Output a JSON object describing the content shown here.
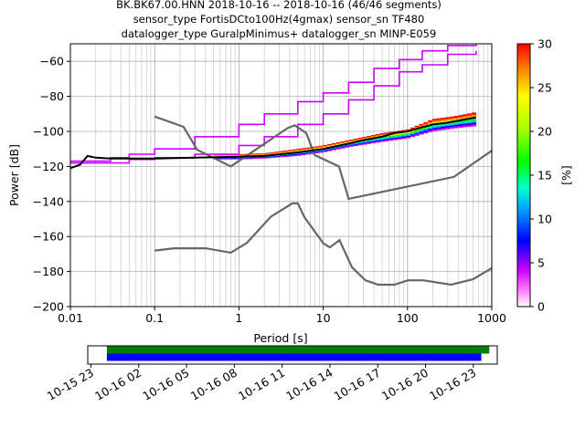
{
  "titles": [
    "BK.BK67.00.HNN   2018-10-16 -- 2018-10-16  (46/46 segments)",
    "sensor_type FortisDCto100Hz(4gmax) sensor_sn TF480",
    "datalogger_type GuralpMinimus+ datalogger_sn MINP-E059"
  ],
  "chart_data": [
    {
      "type": "heatmap",
      "xlabel": "Period [s]",
      "ylabel": "Power [dB]",
      "xscale": "log",
      "xlim": [
        0.01,
        1000
      ],
      "ylim": [
        -200,
        -50
      ],
      "x_ticks": [
        0.01,
        0.1,
        1,
        10,
        100,
        1000
      ],
      "x_tick_labels": [
        "0.01",
        "0.1",
        "1",
        "10",
        "100",
        "1000"
      ],
      "y_ticks": [
        -200,
        -180,
        -160,
        -140,
        -120,
        -100,
        -80,
        -60
      ],
      "y_tick_labels": [
        "−200",
        "−180",
        "−160",
        "−140",
        "−120",
        "−100",
        "−80",
        "−60"
      ],
      "grid": true,
      "colorbar": {
        "label": "[%]",
        "range": [
          0,
          30
        ],
        "ticks": [
          0,
          5,
          10,
          15,
          20,
          25,
          30
        ],
        "tick_labels": [
          "0",
          "5",
          "10",
          "15",
          "20",
          "25",
          "30"
        ]
      },
      "mode_curve": {
        "color": "#000000",
        "points": [
          [
            0.01,
            -121
          ],
          [
            0.013,
            -119
          ],
          [
            0.016,
            -114
          ],
          [
            0.02,
            -115
          ],
          [
            0.03,
            -115.5
          ],
          [
            0.05,
            -115.5
          ],
          [
            0.1,
            -115.5
          ],
          [
            0.3,
            -115
          ],
          [
            1,
            -114.5
          ],
          [
            2,
            -114
          ],
          [
            5,
            -112
          ],
          [
            10,
            -110
          ],
          [
            20,
            -107
          ],
          [
            30,
            -105
          ],
          [
            50,
            -103
          ],
          [
            70,
            -101
          ],
          [
            100,
            -100
          ],
          [
            200,
            -96
          ],
          [
            300,
            -95
          ],
          [
            500,
            -93
          ],
          [
            650,
            -92
          ]
        ]
      },
      "upper_band": {
        "color": "#cc00ff",
        "points": [
          [
            0.01,
            -117
          ],
          [
            0.03,
            -115
          ],
          [
            0.05,
            -113
          ],
          [
            0.1,
            -110
          ],
          [
            0.3,
            -103
          ],
          [
            1,
            -96
          ],
          [
            2,
            -90
          ],
          [
            5,
            -83
          ],
          [
            10,
            -78
          ],
          [
            20,
            -72
          ],
          [
            40,
            -64
          ],
          [
            80,
            -59
          ],
          [
            150,
            -54
          ],
          [
            300,
            -51
          ],
          [
            650,
            -50
          ]
        ]
      },
      "lower_band_magenta": {
        "color": "#cc00ff",
        "points": [
          [
            0.01,
            -118
          ],
          [
            0.05,
            -116
          ],
          [
            0.1,
            -115
          ],
          [
            0.3,
            -113
          ],
          [
            1,
            -108
          ],
          [
            2,
            -103
          ],
          [
            5,
            -96
          ],
          [
            10,
            -90
          ],
          [
            20,
            -82
          ],
          [
            40,
            -74
          ],
          [
            80,
            -66
          ],
          [
            150,
            -62
          ],
          [
            300,
            -56
          ],
          [
            650,
            -54
          ]
        ]
      },
      "pdf_band": {
        "lower": [
          [
            0.5,
            -116
          ],
          [
            1,
            -116
          ],
          [
            2,
            -115.5
          ],
          [
            5,
            -114
          ],
          [
            10,
            -112
          ],
          [
            20,
            -109
          ],
          [
            50,
            -106
          ],
          [
            100,
            -104
          ],
          [
            200,
            -100
          ],
          [
            400,
            -98
          ],
          [
            650,
            -97
          ]
        ],
        "upper": [
          [
            0.5,
            -113
          ],
          [
            1,
            -113
          ],
          [
            2,
            -112.5
          ],
          [
            5,
            -110
          ],
          [
            10,
            -108
          ],
          [
            20,
            -105
          ],
          [
            50,
            -101
          ],
          [
            100,
            -99
          ],
          [
            200,
            -93
          ],
          [
            400,
            -91
          ],
          [
            650,
            -89
          ]
        ]
      },
      "noise_models": {
        "color": "#666666",
        "nhnm": [
          [
            0.1,
            -91.5
          ],
          [
            0.22,
            -97.4
          ],
          [
            0.32,
            -110.5
          ],
          [
            0.8,
            -120
          ],
          [
            3.8,
            -98
          ],
          [
            4.6,
            -96.5
          ],
          [
            6.3,
            -101
          ],
          [
            7.9,
            -113.5
          ],
          [
            15.4,
            -120
          ],
          [
            20,
            -138.5
          ],
          [
            354.8,
            -126
          ],
          [
            1000,
            -111
          ]
        ],
        "nlnm": [
          [
            0.1,
            -168
          ],
          [
            0.17,
            -166.7
          ],
          [
            0.4,
            -166.7
          ],
          [
            0.8,
            -169.2
          ],
          [
            1.24,
            -163.7
          ],
          [
            2.4,
            -148.6
          ],
          [
            4.3,
            -141.1
          ],
          [
            5,
            -141.1
          ],
          [
            6,
            -149
          ],
          [
            10,
            -163.8
          ],
          [
            12,
            -166.2
          ],
          [
            15.6,
            -162.1
          ],
          [
            21.9,
            -177.5
          ],
          [
            31.6,
            -185
          ],
          [
            45,
            -187.5
          ],
          [
            70,
            -187.5
          ],
          [
            101,
            -185
          ],
          [
            154,
            -185
          ],
          [
            328,
            -187.5
          ],
          [
            600,
            -184.4
          ],
          [
            1000,
            -178
          ]
        ]
      }
    },
    {
      "type": "bar",
      "description_free": true,
      "x_tick_labels": [
        "10-15 23",
        "10-16 02",
        "10-16 05",
        "10-16 08",
        "10-16 11",
        "10-16 14",
        "10-16 17",
        "10-16 20",
        "10-16 23"
      ],
      "x_ticks_hours": [
        23,
        26,
        29,
        32,
        35,
        38,
        41,
        44,
        47
      ],
      "xlim_hours": [
        22.8,
        48.5
      ],
      "segments": [
        {
          "color": "#008000",
          "start_hour": 24.0,
          "end_hour": 48.0
        },
        {
          "color": "#0000ff",
          "start_hour": 24.0,
          "end_hour": 47.5
        }
      ]
    }
  ]
}
